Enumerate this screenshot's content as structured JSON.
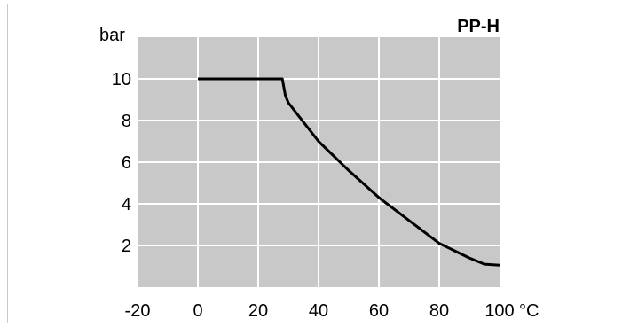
{
  "chart_data": {
    "type": "line",
    "title": "PP-H",
    "ylabel": "bar",
    "xlabel": "°C",
    "xlim": [
      -20,
      100
    ],
    "ylim": [
      0,
      12
    ],
    "x_ticks": [
      "-20",
      "0",
      "20",
      "40",
      "60",
      "80",
      "100"
    ],
    "y_ticks": [
      "2",
      "4",
      "6",
      "8",
      "10"
    ],
    "grid": true,
    "series": [
      {
        "points": [
          [
            0,
            10
          ],
          [
            28,
            10
          ],
          [
            28.5,
            9.6
          ],
          [
            29,
            9.2
          ],
          [
            30,
            8.85
          ],
          [
            40,
            7.0
          ],
          [
            50,
            5.6
          ],
          [
            60,
            4.3
          ],
          [
            70,
            3.2
          ],
          [
            80,
            2.1
          ],
          [
            90,
            1.4
          ],
          [
            95,
            1.1
          ],
          [
            100,
            1.05
          ]
        ]
      }
    ]
  },
  "colors": {
    "plot_background": "#c8c8c8",
    "grid": "#ffffff",
    "line": "#000000",
    "frame": "#c8c8c8"
  }
}
